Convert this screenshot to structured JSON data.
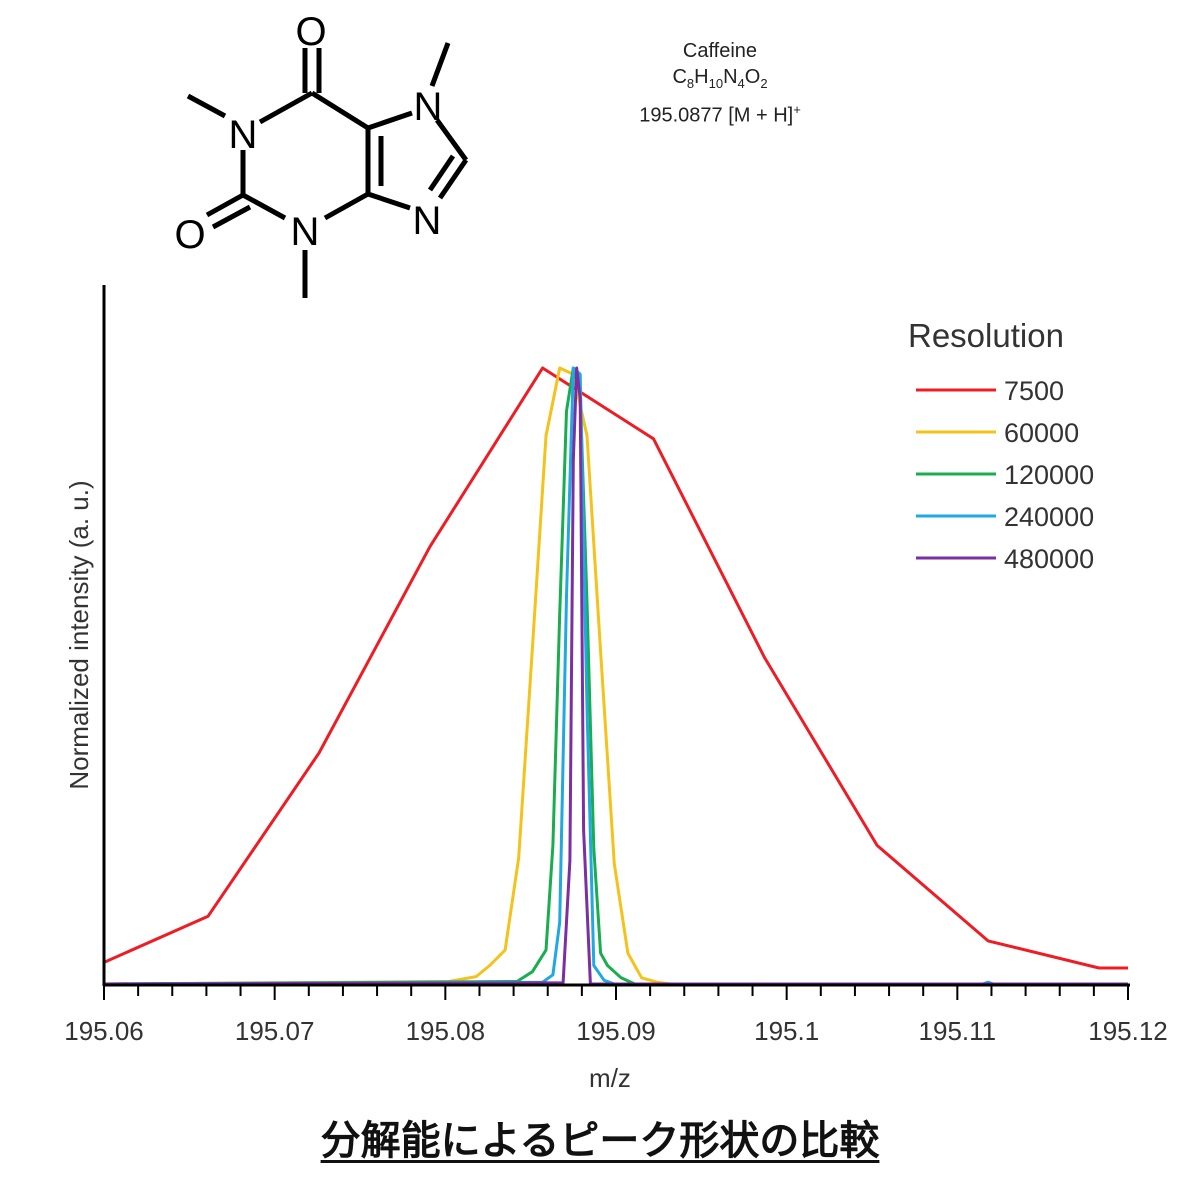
{
  "compound": {
    "name": "Caffeine",
    "formula": [
      {
        "text": "C",
        "type": "n"
      },
      {
        "text": "8",
        "type": "sub"
      },
      {
        "text": "H",
        "type": "n"
      },
      {
        "text": "10",
        "type": "sub"
      },
      {
        "text": "N",
        "type": "n"
      },
      {
        "text": "4",
        "type": "sub"
      },
      {
        "text": "O",
        "type": "n"
      },
      {
        "text": "2",
        "type": "sub"
      }
    ],
    "mass_value": "195.0877",
    "ion": "[M + H]",
    "ion_charge": "+"
  },
  "structure": {
    "atoms": [
      "O",
      "N",
      "N",
      "N",
      "N",
      "O"
    ]
  },
  "caption": "分解能によるピーク形状の比較",
  "chart_data": {
    "type": "line",
    "xlabel": "m/z",
    "ylabel": "Normalized intensity (a. u.)",
    "xlim": [
      195.06,
      195.12
    ],
    "ylim": [
      0,
      1
    ],
    "x_ticks": [
      195.06,
      195.07,
      195.08,
      195.09,
      195.1,
      195.11,
      195.12
    ],
    "x_tick_labels": [
      "195.06",
      "195.07",
      "195.08",
      "195.09",
      "195.1",
      "195.11",
      "195.12"
    ],
    "y_ticks_shown": false,
    "grid": false,
    "legend": {
      "title": "Resolution",
      "placement": "top-right"
    },
    "series": [
      {
        "name": "7500",
        "color": "#ee1c25",
        "x": [
          195.06,
          195.0661,
          195.0726,
          195.0791,
          195.0857,
          195.0922,
          195.0987,
          195.1053,
          195.1118,
          195.1183,
          195.12
        ],
        "y": [
          0.035,
          0.11,
          0.375,
          0.71,
          1.0,
          0.885,
          0.53,
          0.225,
          0.07,
          0.026,
          0.026
        ]
      },
      {
        "name": "60000",
        "color": "#f5c21b",
        "x": [
          195.06,
          195.0802,
          195.0818,
          195.0826,
          195.0835,
          195.0843,
          195.0851,
          195.0859,
          195.0867,
          195.0875,
          195.0883,
          195.0891,
          195.0899,
          195.0907,
          195.0915,
          195.0924,
          195.0932,
          195.12
        ],
        "y": [
          0.0,
          0.004,
          0.012,
          0.03,
          0.055,
          0.205,
          0.545,
          0.89,
          1.0,
          0.99,
          0.89,
          0.54,
          0.195,
          0.05,
          0.01,
          0.003,
          0.0,
          0.0
        ]
      },
      {
        "name": "120000",
        "color": "#1aad4f",
        "x": [
          195.06,
          195.0842,
          195.0851,
          195.0859,
          195.0863,
          195.0867,
          195.0871,
          195.0875,
          195.0879,
          195.0883,
          195.0887,
          195.0891,
          195.0895,
          195.0903,
          195.0911,
          195.12
        ],
        "y": [
          0.0,
          0.004,
          0.02,
          0.055,
          0.225,
          0.6,
          0.93,
          1.0,
          0.96,
          0.62,
          0.22,
          0.05,
          0.03,
          0.01,
          0.0,
          0.0
        ]
      },
      {
        "name": "240000",
        "color": "#1fa9e1",
        "x": [
          195.06,
          195.0857,
          195.0863,
          195.0867,
          195.0871,
          195.0875,
          195.0879,
          195.0883,
          195.0887,
          195.0893,
          195.0899,
          195.1115,
          195.1118,
          195.1121,
          195.12
        ],
        "y": [
          0.0,
          0.003,
          0.015,
          0.1,
          0.63,
          1.0,
          0.99,
          0.45,
          0.03,
          0.006,
          0.0,
          0.0,
          0.003,
          0.0,
          0.0
        ]
      },
      {
        "name": "480000",
        "color": "#7b2fa3",
        "x": [
          195.06,
          195.0869,
          195.0873,
          195.0875,
          195.0877,
          195.0879,
          195.0881,
          195.0885,
          195.12
        ],
        "y": [
          0.0,
          0.002,
          0.2,
          0.85,
          1.0,
          0.95,
          0.25,
          0.0,
          0.0
        ]
      }
    ]
  }
}
